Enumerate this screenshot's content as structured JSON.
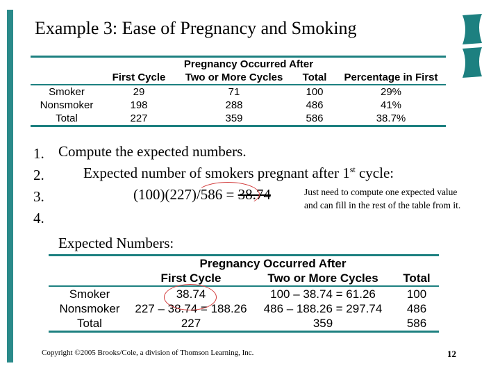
{
  "slide": {
    "title": "Example 3: Ease of Pregnancy and Smoking",
    "colors": {
      "accent": "#1d8080",
      "annotation": "#d23b3b"
    }
  },
  "observed_table": {
    "group_header": "Pregnancy Occurred After",
    "columns": [
      "",
      "First Cycle",
      "Two or More Cycles",
      "Total",
      "Percentage in First"
    ],
    "rows": [
      [
        "Smoker",
        "29",
        "71",
        "100",
        "29%"
      ],
      [
        "Nonsmoker",
        "198",
        "288",
        "486",
        "41%"
      ],
      [
        "Total",
        "227",
        "359",
        "586",
        "38.7%"
      ]
    ]
  },
  "steps": [
    {
      "number": "1.",
      "text": "Compute the expected numbers."
    },
    {
      "number": "2.",
      "text": "Expected number of smokers pregnant after 1",
      "sup": "st",
      "tail": " cycle:"
    },
    {
      "number": "3.",
      "text": "(100)(227)/586 = ",
      "value": "38.74"
    },
    {
      "number": "4.",
      "text": ""
    }
  ],
  "note": "Just need to compute one expected value and can fill in the rest of the table from it.",
  "expected_label": "Expected Numbers:",
  "expected_table": {
    "group_header": "Pregnancy Occurred After",
    "columns": [
      "",
      "First Cycle",
      "Two or More Cycles",
      "Total"
    ],
    "rows": [
      [
        "Smoker",
        "38.74",
        "100 – 38.74 = 61.26",
        "100"
      ],
      [
        "Nonsmoker",
        "227 – 38.74 = 188.26",
        "486 – 188.26 = 297.74",
        "486"
      ],
      [
        "Total",
        "227",
        "359",
        "586"
      ]
    ]
  },
  "footer": {
    "copyright": "Copyright ©2005 Brooks/Cole, a division of Thomson Learning, Inc.",
    "page": "12"
  }
}
